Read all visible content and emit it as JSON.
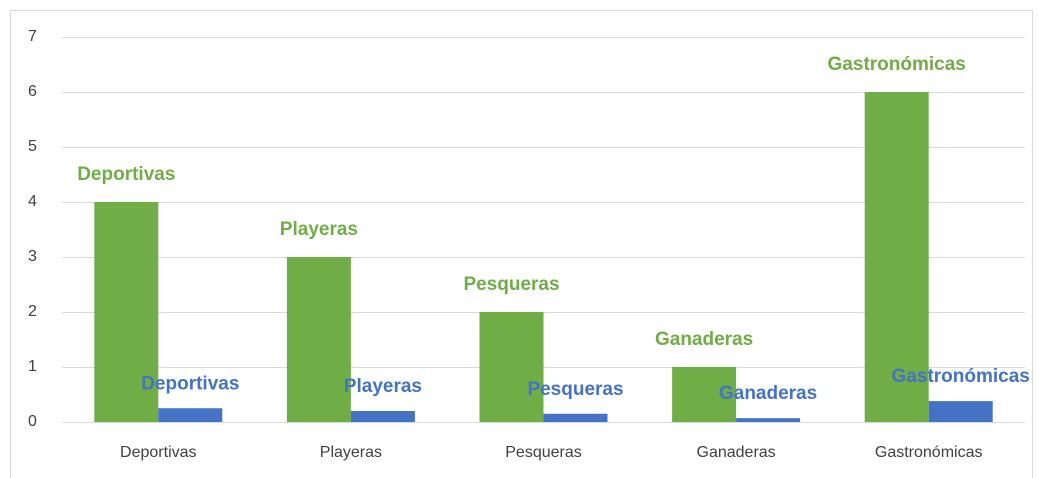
{
  "chart_data": {
    "type": "bar",
    "categories": [
      "Deportivas",
      "Playeras",
      "Pesqueras",
      "Ganaderas",
      "Gastronómicas"
    ],
    "series": [
      {
        "color": "#70ad47",
        "values": [
          4,
          3,
          2,
          1,
          6
        ]
      },
      {
        "color": "#4472c4",
        "values": [
          0.25,
          0.2,
          0.15,
          0.07,
          0.38
        ]
      }
    ],
    "ylim": [
      0,
      7
    ],
    "yticks": [
      0,
      1,
      2,
      3,
      4,
      5,
      6,
      7
    ],
    "grid": true,
    "data_labels": "category"
  }
}
